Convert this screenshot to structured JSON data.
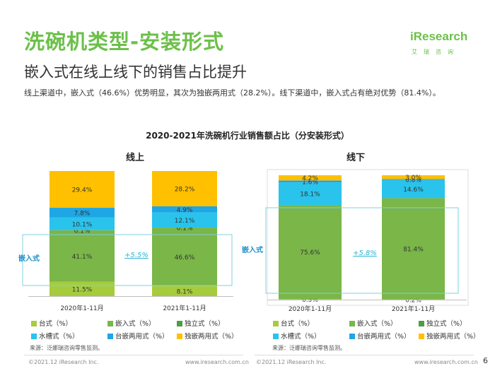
{
  "header": {
    "title": "洗碗机类型-安装形式",
    "subtitle": "嵌入式在线上线下的销售占比提升",
    "description": "线上渠道中，嵌入式（46.6%）优势明显，其次为独嵌两用式（28.2%）。线下渠道中，嵌入式占有绝对优势（81.4%）。"
  },
  "logo": {
    "text": "iResearch",
    "sub": "艾瑞咨询"
  },
  "chart_title": "2020-2021年洗碗机行业销售额占比（分安装形式）",
  "colors": {
    "台式": "#a6cc3d",
    "嵌入式": "#7ab648",
    "独立式": "#4aa040",
    "水槽式": "#29c3ec",
    "台嵌两用式": "#1fa6e4",
    "独嵌两用式": "#ffc000"
  },
  "chart_data": [
    {
      "type": "bar",
      "stacked": true,
      "title": "线上",
      "categories": [
        "2020年1-11月",
        "2021年1-11月"
      ],
      "series": [
        {
          "name": "台式（%）",
          "values": [
            11.5,
            8.1
          ]
        },
        {
          "name": "嵌入式（%）",
          "values": [
            41.1,
            46.6
          ]
        },
        {
          "name": "独立式（%）",
          "values": [
            0.1,
            0.1
          ]
        },
        {
          "name": "水槽式（%）",
          "values": [
            10.1,
            12.1
          ]
        },
        {
          "name": "台嵌两用式（%）",
          "values": [
            7.8,
            4.9
          ]
        },
        {
          "name": "独嵌两用式（%）",
          "values": [
            29.4,
            28.2
          ]
        }
      ],
      "annotation": {
        "label": "嵌入式",
        "change": "+5.5%"
      },
      "source": "来源：泛娜瑞咨询零售监测。"
    },
    {
      "type": "bar",
      "stacked": true,
      "title": "线下",
      "categories": [
        "2020年1-11月",
        "2021年1-11月"
      ],
      "series": [
        {
          "name": "台式（%）",
          "values": [
            0.5,
            0.2
          ]
        },
        {
          "name": "嵌入式（%）",
          "values": [
            75.6,
            81.4
          ]
        },
        {
          "name": "独立式（%）",
          "values": [
            0,
            0
          ]
        },
        {
          "name": "水槽式（%）",
          "values": [
            18.1,
            14.6
          ]
        },
        {
          "name": "台嵌两用式（%）",
          "values": [
            1.6,
            0.8
          ]
        },
        {
          "name": "独嵌两用式（%）",
          "values": [
            4.2,
            3.0
          ]
        }
      ],
      "annotation": {
        "label": "嵌入式",
        "change": "+5.8%"
      },
      "source": "来源：泛娜瑞咨询零售监测。"
    }
  ],
  "footer": {
    "copyright": "©2021.12 iResearch Inc.",
    "url": "www.iresearch.com.cn",
    "page": "6"
  }
}
